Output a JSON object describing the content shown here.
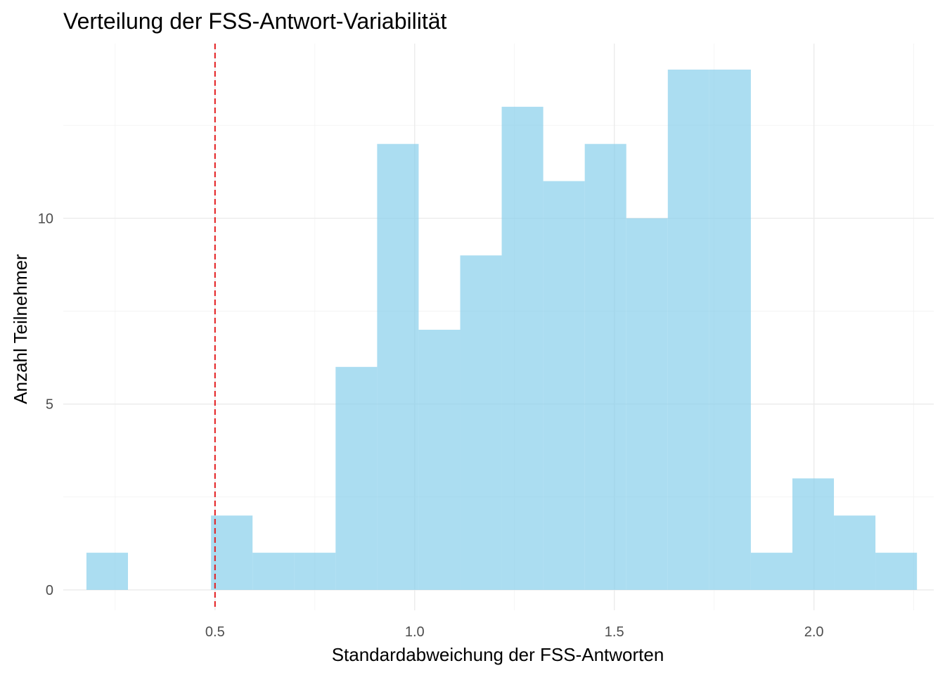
{
  "chart_data": {
    "type": "bar",
    "title": "Verteilung der FSS-Antwort-Variabilität",
    "xlabel": "Standardabweichung der FSS-Antworten",
    "ylabel": "Anzahl Teilnehmer",
    "bin_width": 0.104,
    "bins": [
      {
        "x_start": 0.178,
        "x_end": 0.282,
        "count": 1
      },
      {
        "x_start": 0.282,
        "x_end": 0.386,
        "count": 0
      },
      {
        "x_start": 0.386,
        "x_end": 0.49,
        "count": 0
      },
      {
        "x_start": 0.49,
        "x_end": 0.594,
        "count": 2
      },
      {
        "x_start": 0.594,
        "x_end": 0.698,
        "count": 1
      },
      {
        "x_start": 0.698,
        "x_end": 0.802,
        "count": 1
      },
      {
        "x_start": 0.802,
        "x_end": 0.906,
        "count": 6
      },
      {
        "x_start": 0.906,
        "x_end": 1.01,
        "count": 12
      },
      {
        "x_start": 1.01,
        "x_end": 1.114,
        "count": 7
      },
      {
        "x_start": 1.114,
        "x_end": 1.218,
        "count": 9
      },
      {
        "x_start": 1.218,
        "x_end": 1.322,
        "count": 13
      },
      {
        "x_start": 1.322,
        "x_end": 1.426,
        "count": 11
      },
      {
        "x_start": 1.426,
        "x_end": 1.53,
        "count": 12
      },
      {
        "x_start": 1.53,
        "x_end": 1.634,
        "count": 10
      },
      {
        "x_start": 1.634,
        "x_end": 1.738,
        "count": 14
      },
      {
        "x_start": 1.738,
        "x_end": 1.842,
        "count": 14
      },
      {
        "x_start": 1.842,
        "x_end": 1.946,
        "count": 1
      },
      {
        "x_start": 1.946,
        "x_end": 2.05,
        "count": 3
      },
      {
        "x_start": 2.05,
        "x_end": 2.154,
        "count": 2
      },
      {
        "x_start": 2.154,
        "x_end": 2.258,
        "count": 1
      }
    ],
    "xlim": [
      0.12,
      2.3
    ],
    "ylim": [
      -0.55,
      14.7
    ],
    "x_ticks": [
      0.5,
      1.0,
      1.5,
      2.0
    ],
    "x_tick_labels": [
      "0.5",
      "1.0",
      "1.5",
      "2.0"
    ],
    "x_minor_ticks": [
      0.25,
      0.75,
      1.25,
      1.75,
      2.25
    ],
    "y_ticks": [
      0,
      5,
      10
    ],
    "y_tick_labels": [
      "0",
      "5",
      "10"
    ],
    "y_minor_ticks": [
      2.5,
      7.5,
      12.5
    ],
    "reference_line": {
      "x": 0.5,
      "style": "dashed",
      "color": "#e31a1c"
    },
    "bar_color": "#87ceeb",
    "bar_opacity": 0.7,
    "grid": true,
    "legend": "none"
  }
}
